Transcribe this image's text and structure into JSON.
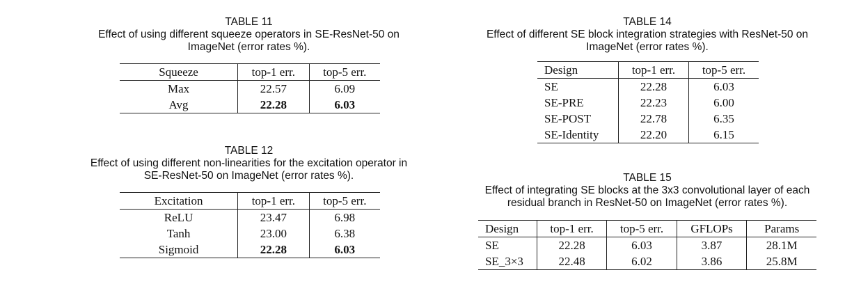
{
  "table11": {
    "title": "TABLE 11",
    "caption_line1": "Effect of using different squeeze operators in SE-ResNet-50 on",
    "caption_line2": "ImageNet (error rates %).",
    "headers": [
      "Squeeze",
      "top-1 err.",
      "top-5 err."
    ],
    "rows": [
      [
        "Max",
        "22.57",
        "6.09"
      ],
      [
        "Avg",
        "22.28",
        "6.03"
      ]
    ]
  },
  "table12": {
    "title": "TABLE 12",
    "caption_line1": "Effect of using different non-linearities for the excitation operator in",
    "caption_line2": "SE-ResNet-50 on ImageNet (error rates %).",
    "headers": [
      "Excitation",
      "top-1 err.",
      "top-5 err."
    ],
    "rows": [
      [
        "ReLU",
        "23.47",
        "6.98"
      ],
      [
        "Tanh",
        "23.00",
        "6.38"
      ],
      [
        "Sigmoid",
        "22.28",
        "6.03"
      ]
    ]
  },
  "table14": {
    "title": "TABLE 14",
    "caption_line1": "Effect of different SE block integration strategies with ResNet-50 on",
    "caption_line2": "ImageNet (error rates %).",
    "headers": [
      "Design",
      "top-1 err.",
      "top-5 err."
    ],
    "rows": [
      [
        "SE",
        "22.28",
        "6.03"
      ],
      [
        "SE-PRE",
        "22.23",
        "6.00"
      ],
      [
        "SE-POST",
        "22.78",
        "6.35"
      ],
      [
        "SE-Identity",
        "22.20",
        "6.15"
      ]
    ]
  },
  "table15": {
    "title": "TABLE 15",
    "caption_line1": "Effect of integrating SE blocks at the 3x3 convolutional layer of each",
    "caption_line2": "residual branch in ResNet-50 on ImageNet (error rates %).",
    "headers": [
      "Design",
      "top-1 err.",
      "top-5 err.",
      "GFLOPs",
      "Params"
    ],
    "rows": [
      [
        "SE",
        "22.28",
        "6.03",
        "3.87",
        "28.1M"
      ],
      [
        "SE_3×3",
        "22.48",
        "6.02",
        "3.86",
        "25.8M"
      ]
    ]
  }
}
